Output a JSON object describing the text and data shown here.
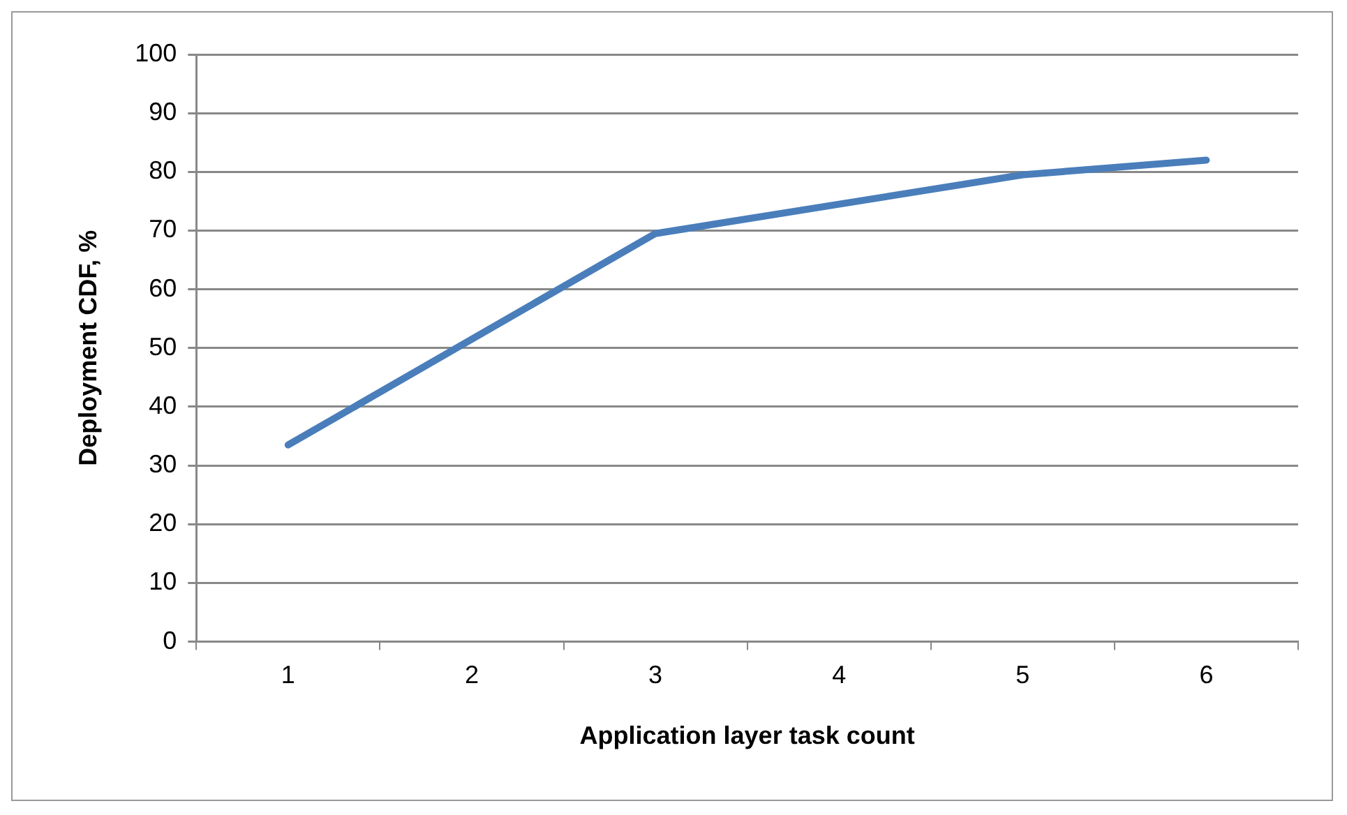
{
  "chart_data": {
    "type": "line",
    "xlabel": "Application layer task count",
    "ylabel": "Deployment CDF, %",
    "categories": [
      "1",
      "2",
      "3",
      "4",
      "5",
      "6"
    ],
    "series": [
      {
        "color": "#4a7ebb",
        "values": [
          33.5,
          51.5,
          69.5,
          74.5,
          79.5,
          82
        ]
      }
    ],
    "ylim": [
      0,
      100
    ],
    "yticks": [
      0,
      10,
      20,
      30,
      40,
      50,
      60,
      70,
      80,
      90,
      100
    ],
    "grid": "y",
    "legend": false,
    "marker": "none",
    "line_style": "solid"
  }
}
